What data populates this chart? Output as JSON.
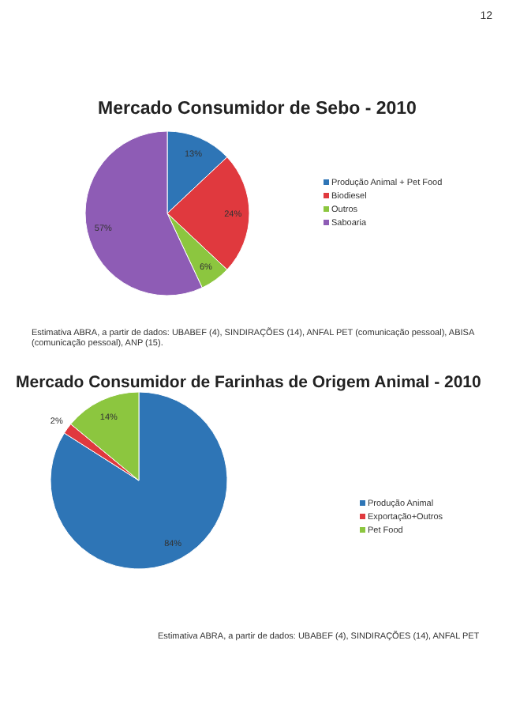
{
  "chart_data": [
    {
      "type": "pie",
      "title": "Mercado Consumidor de Sebo - 2010",
      "categories": [
        "Produção Animal + Pet Food",
        "Biodiesel",
        "Outros",
        "Saboaria"
      ],
      "values": [
        13,
        24,
        6,
        57
      ],
      "value_labels": [
        "13%",
        "24%",
        "6%",
        "57%"
      ],
      "colors": [
        "#2e75b6",
        "#e0393e",
        "#8cc63f",
        "#8e5cb5"
      ],
      "legend": "right",
      "annotations": [
        "12",
        "Estimativa ABRA, a partir de dados: UBABEF (4), SINDIRAÇÕES (14), ANFAL PET (comunicação pessoal), ABISA (comunicação pessoal), ANP (15)."
      ]
    },
    {
      "type": "pie",
      "title": "Mercado Consumidor de Farinhas de Origem Animal - 2010",
      "categories": [
        "Produção Animal",
        "Exportação+Outros",
        "Pet Food"
      ],
      "values": [
        84,
        2,
        14
      ],
      "value_labels": [
        "84%",
        "2%",
        "14%"
      ],
      "colors": [
        "#2e75b6",
        "#e0393e",
        "#8cc63f"
      ],
      "legend": "right",
      "annotations": [
        "Estimativa ABRA, a partir de dados: UBABEF (4), SINDIRAÇÕES (14), ANFAL PET"
      ]
    }
  ]
}
